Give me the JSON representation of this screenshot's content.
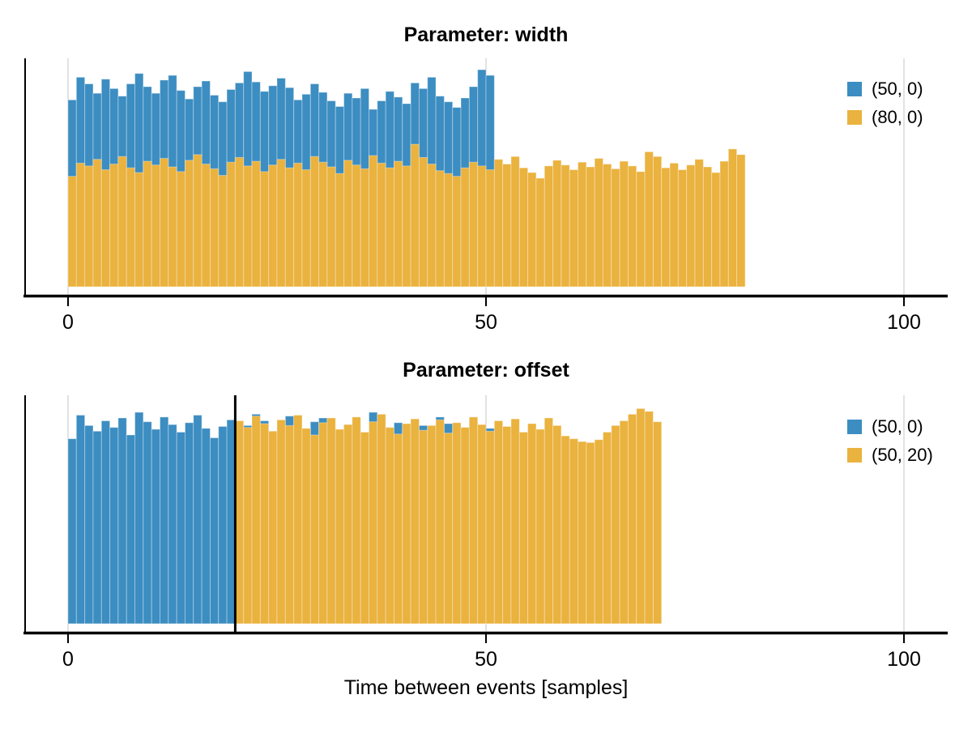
{
  "figure": {
    "xlabel": "Time between events [samples]",
    "background": "#ffffff"
  },
  "colors": {
    "blue": "#3C8DC1",
    "orange": "#EAB23E",
    "axis": "#000000",
    "grid": "#E2E2E2",
    "vline": "#000000"
  },
  "chart_data": [
    {
      "type": "bar",
      "mark": "histogram",
      "normalization": "density",
      "title": "Parameter: width",
      "xlabel": "",
      "ylabel": "",
      "xlim": [
        -5.2,
        105
      ],
      "ylim": [
        0,
        0.0242
      ],
      "grid": "vertical",
      "legend_position": "top-right",
      "xticks": {
        "values": [
          0,
          50,
          100
        ],
        "labels": [
          "0",
          "50",
          "100"
        ]
      },
      "legend": [
        {
          "label": "(50, 0)",
          "color_key": "blue"
        },
        {
          "label": "(80, 0)",
          "color_key": "orange"
        }
      ],
      "series": [
        {
          "name": "(50, 0)",
          "color_key": "blue",
          "bin_start": 0,
          "bin_width": 1,
          "densities": [
            0.0198,
            0.0222,
            0.0215,
            0.0205,
            0.022,
            0.021,
            0.0202,
            0.0215,
            0.0226,
            0.0212,
            0.0205,
            0.0219,
            0.0224,
            0.0208,
            0.0199,
            0.0212,
            0.0218,
            0.0203,
            0.0196,
            0.0209,
            0.0216,
            0.0228,
            0.0217,
            0.0207,
            0.0213,
            0.0221,
            0.0211,
            0.0198,
            0.0204,
            0.0215,
            0.0206,
            0.0197,
            0.0191,
            0.0205,
            0.02,
            0.021,
            0.0188,
            0.0197,
            0.0207,
            0.0201,
            0.0194,
            0.0216,
            0.021,
            0.0222,
            0.0202,
            0.0196,
            0.019,
            0.02,
            0.0212,
            0.023,
            0.0224
          ]
        },
        {
          "name": "(80, 0)",
          "color_key": "orange",
          "bin_start": 0,
          "bin_width": 1,
          "densities": [
            0.0117,
            0.0131,
            0.0128,
            0.0135,
            0.0124,
            0.013,
            0.0138,
            0.0126,
            0.0121,
            0.0133,
            0.0129,
            0.0136,
            0.0127,
            0.0122,
            0.0134,
            0.014,
            0.013,
            0.0125,
            0.0118,
            0.0132,
            0.0137,
            0.0128,
            0.0133,
            0.0122,
            0.0129,
            0.0135,
            0.0126,
            0.0131,
            0.0124,
            0.0138,
            0.0132,
            0.0127,
            0.012,
            0.0134,
            0.0129,
            0.0125,
            0.0139,
            0.0131,
            0.0126,
            0.0133,
            0.0128,
            0.0151,
            0.0137,
            0.013,
            0.0123,
            0.012,
            0.0117,
            0.0126,
            0.0132,
            0.0128,
            0.0124,
            0.0135,
            0.013,
            0.0138,
            0.0126,
            0.0121,
            0.0115,
            0.0128,
            0.0134,
            0.0129,
            0.0124,
            0.0132,
            0.0127,
            0.0136,
            0.013,
            0.0125,
            0.0133,
            0.0128,
            0.0122,
            0.0143,
            0.0138,
            0.0126,
            0.0131,
            0.0124,
            0.0129,
            0.0135,
            0.0127,
            0.0121,
            0.0133,
            0.0146,
            0.014
          ]
        }
      ]
    },
    {
      "type": "bar",
      "mark": "histogram",
      "normalization": "density",
      "title": "Parameter: offset",
      "xlabel": "Time between events [samples]",
      "ylabel": "",
      "xlim": [
        -5.2,
        105
      ],
      "ylim": [
        0,
        0.0242
      ],
      "grid": "vertical",
      "legend_position": "top-right",
      "vline": {
        "x": 20,
        "color_key": "vline"
      },
      "xticks": {
        "values": [
          0,
          50,
          100
        ],
        "labels": [
          "0",
          "50",
          "100"
        ]
      },
      "legend": [
        {
          "label": "(50, 0)",
          "color_key": "blue"
        },
        {
          "label": "(50, 20)",
          "color_key": "orange"
        }
      ],
      "series": [
        {
          "name": "(50, 0)",
          "color_key": "blue",
          "bin_start": 0,
          "bin_width": 1,
          "densities": [
            0.0196,
            0.0221,
            0.021,
            0.0204,
            0.0215,
            0.0208,
            0.0218,
            0.02,
            0.0224,
            0.0214,
            0.0206,
            0.0219,
            0.0211,
            0.0203,
            0.0213,
            0.0221,
            0.0207,
            0.0197,
            0.0209,
            0.0216,
            0.0202,
            0.021,
            0.0222,
            0.0215,
            0.0204,
            0.0212,
            0.022,
            0.0208,
            0.0199,
            0.0214,
            0.0218,
            0.0205,
            0.0195,
            0.0211,
            0.0217,
            0.0203,
            0.0224,
            0.0209,
            0.0198,
            0.0213,
            0.0206,
            0.0216,
            0.021,
            0.0201,
            0.0219,
            0.0212,
            0.0204,
            0.0208,
            0.0215,
            0.0202,
            0.0207
          ]
        },
        {
          "name": "(50, 20)",
          "color_key": "orange",
          "bin_start": 20,
          "bin_width": 1,
          "densities": [
            0.0215,
            0.0208,
            0.022,
            0.0212,
            0.0204,
            0.0216,
            0.021,
            0.0221,
            0.0207,
            0.02,
            0.0213,
            0.0218,
            0.0206,
            0.0211,
            0.0219,
            0.0203,
            0.0214,
            0.0222,
            0.0208,
            0.0201,
            0.0212,
            0.0217,
            0.0205,
            0.021,
            0.0216,
            0.0202,
            0.0213,
            0.0208,
            0.0219,
            0.0211,
            0.0204,
            0.0215,
            0.0209,
            0.0217,
            0.0203,
            0.0212,
            0.0206,
            0.0218,
            0.021,
            0.0199,
            0.0196,
            0.0193,
            0.0192,
            0.0195,
            0.0203,
            0.021,
            0.0215,
            0.0222,
            0.0228,
            0.0225,
            0.0214
          ]
        }
      ]
    }
  ]
}
